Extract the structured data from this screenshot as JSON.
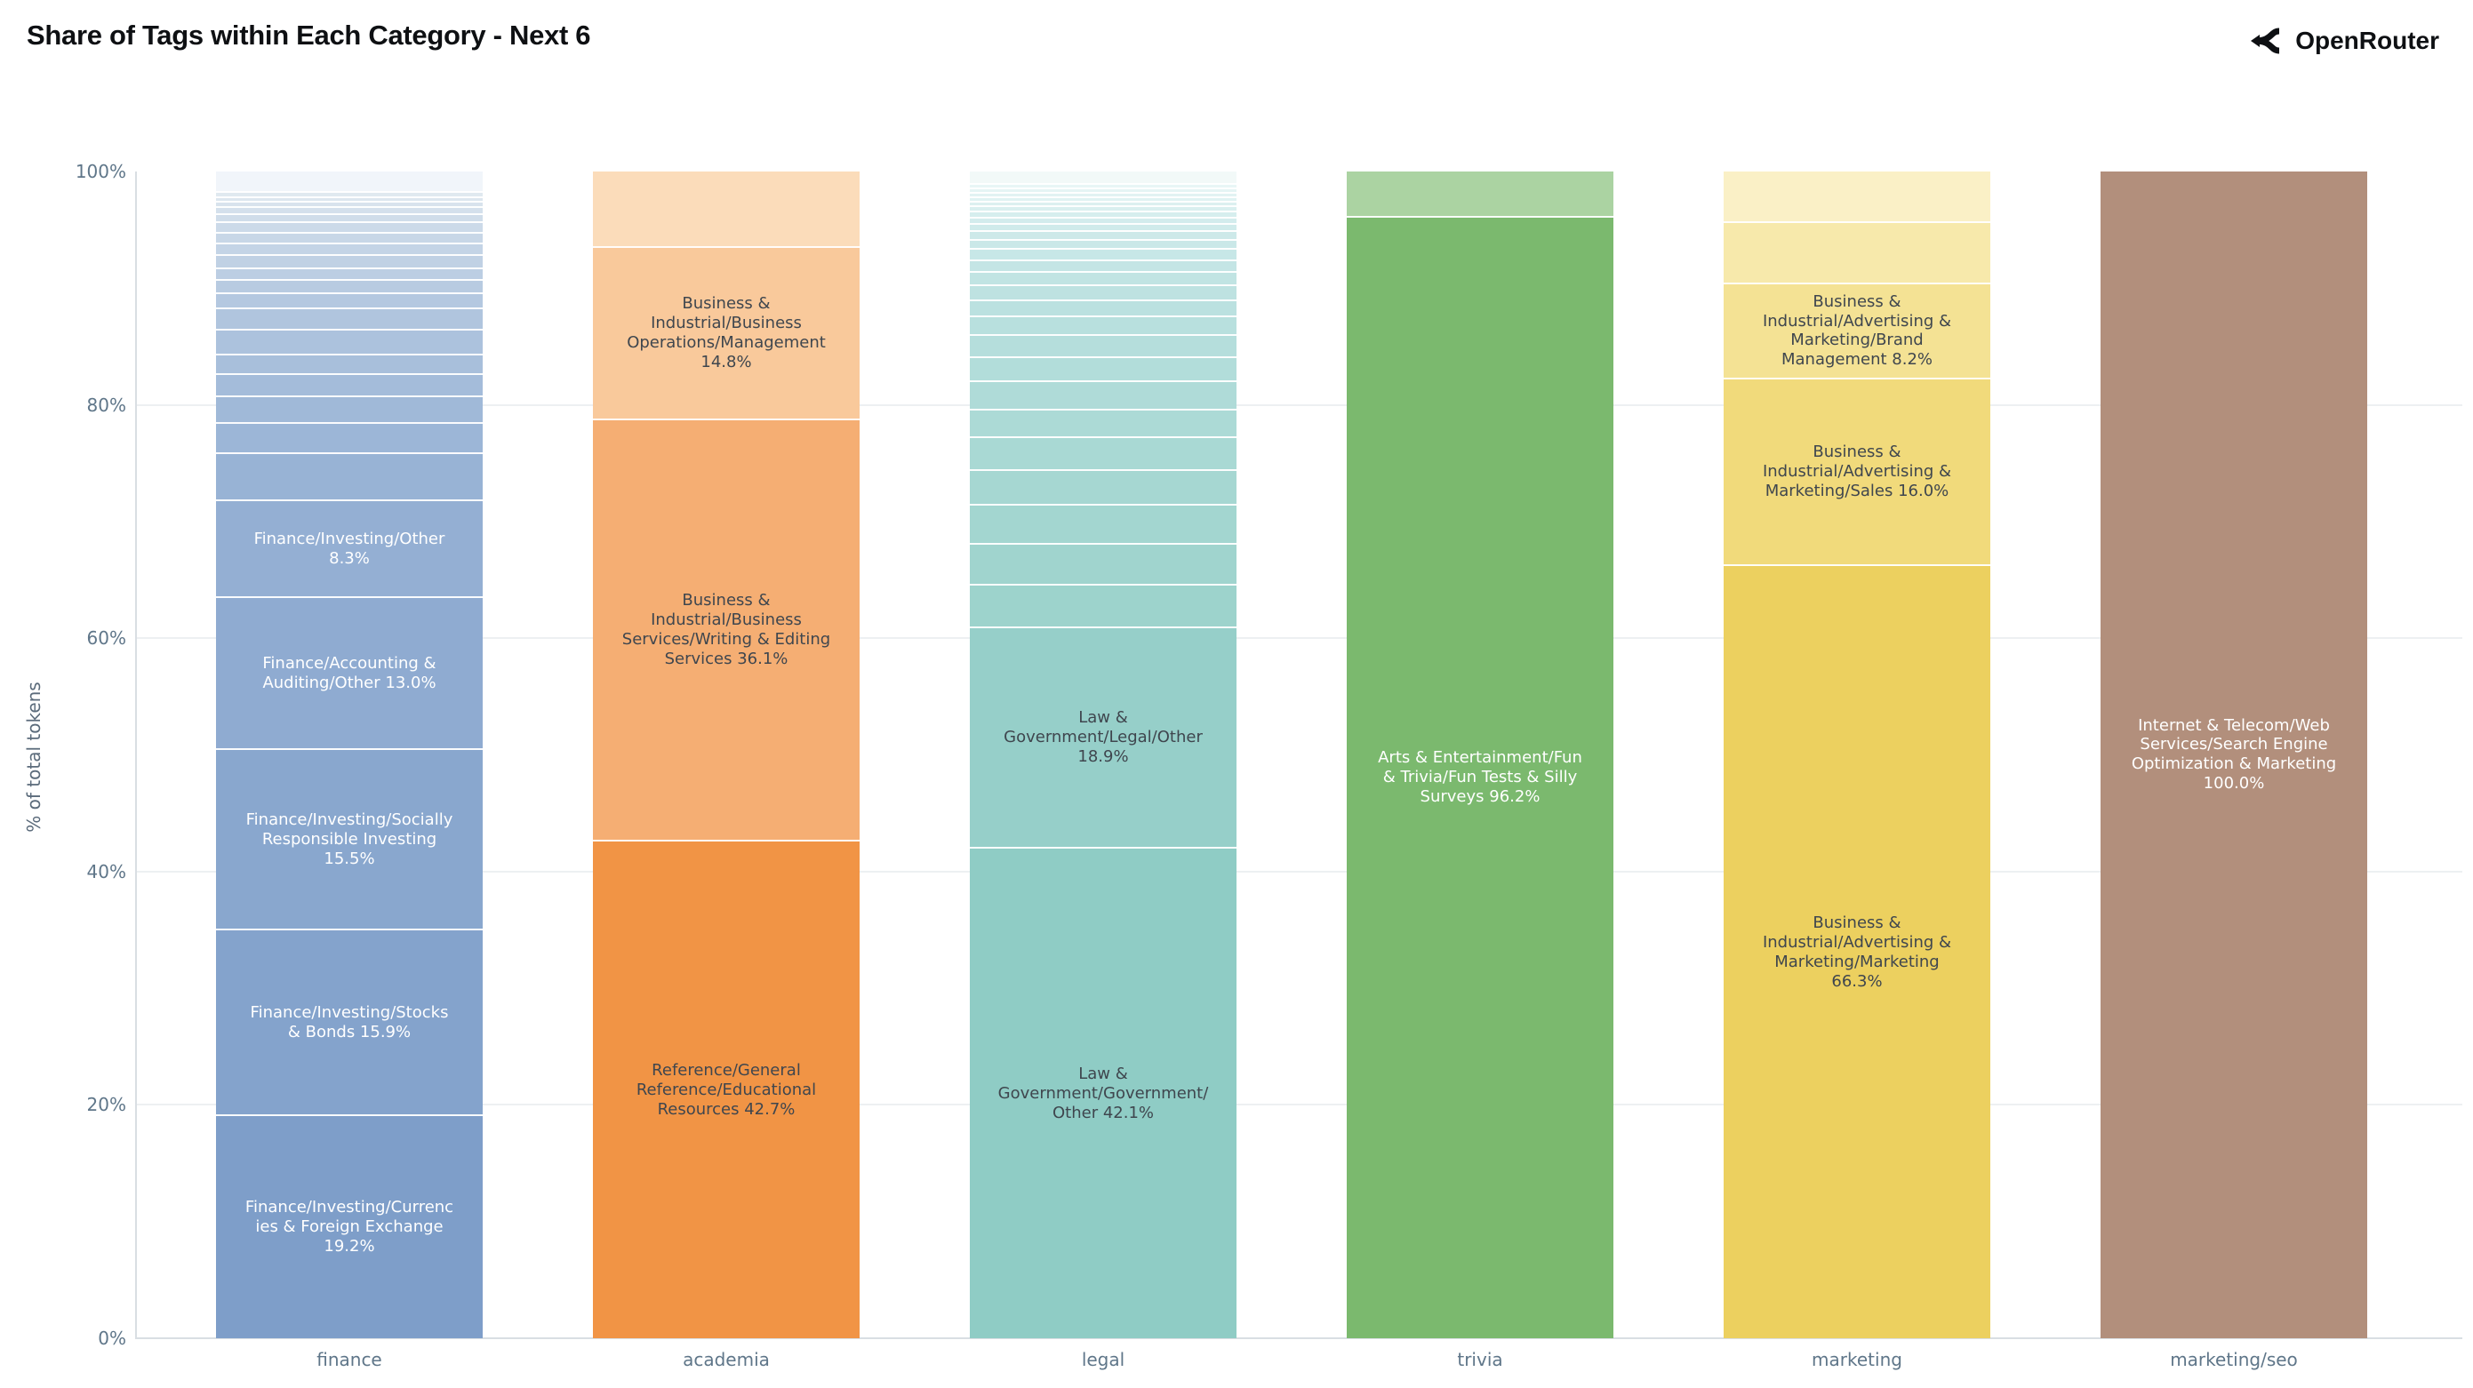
{
  "header": {
    "title": "Share of Tags within Each Category - Next 6",
    "brand": "OpenRouter",
    "icon": "openrouter-chevron-mark"
  },
  "chart_data": {
    "type": "bar",
    "stacked": true,
    "title": "Share of Tags within Each Category - Next 6",
    "xlabel": "",
    "ylabel": "% of total tokens",
    "ylim": [
      0,
      100
    ],
    "grid": true,
    "gridlines": [
      20,
      40,
      60,
      80
    ],
    "legend": "none",
    "yticks": [
      {
        "label": "0%",
        "value": 0
      },
      {
        "label": "20%",
        "value": 20
      },
      {
        "label": "40%",
        "value": 40
      },
      {
        "label": "60%",
        "value": 60
      },
      {
        "label": "80%",
        "value": 80
      },
      {
        "label": "100%",
        "value": 100
      }
    ],
    "categories": [
      "finance",
      "academia",
      "legal",
      "trivia",
      "marketing",
      "marketing/seo"
    ],
    "bars": [
      {
        "category": "finance",
        "segments": [
          {
            "value": 19.2,
            "label": "Finance/Investing/Currencies & Foreign Exchange 19.2%",
            "color": "#7e9ec9",
            "text_color": "#ffffff"
          },
          {
            "value": 15.9,
            "label": "Finance/Investing/Stocks & Bonds 15.9%",
            "color": "#84a3cc",
            "text_color": "#ffffff"
          },
          {
            "value": 15.5,
            "label": "Finance/Investing/Socially Responsible Investing 15.5%",
            "color": "#89a7ce",
            "text_color": "#ffffff"
          },
          {
            "value": 13.0,
            "label": "Finance/Accounting & Auditing/Other 13.0%",
            "color": "#8fabd1",
            "text_color": "#ffffff"
          },
          {
            "value": 8.3,
            "label": "Finance/Investing/Other 8.3%",
            "color": "#94afd3",
            "text_color": "#ffffff"
          },
          {
            "value": 4.1,
            "color": "#98b3d5"
          },
          {
            "value": 2.55,
            "color": "#9cb6d7"
          },
          {
            "value": 2.3,
            "color": "#a0b9d8"
          },
          {
            "value": 1.9,
            "color": "#a4bcda"
          },
          {
            "value": 1.7,
            "color": "#a8bfdb"
          },
          {
            "value": 2.1,
            "color": "#acc2dd"
          },
          {
            "value": 1.85,
            "color": "#b0c5de"
          },
          {
            "value": 1.3,
            "color": "#b4c8e0"
          },
          {
            "value": 1.15,
            "color": "#b8cbe1"
          },
          {
            "value": 1.0,
            "color": "#bccee3"
          },
          {
            "value": 1.1,
            "color": "#c0d1e4"
          },
          {
            "value": 1.0,
            "color": "#c4d4e6"
          },
          {
            "value": 0.95,
            "color": "#c8d7e7"
          },
          {
            "value": 0.9,
            "color": "#ccdae9"
          },
          {
            "value": 0.65,
            "color": "#d0ddea"
          },
          {
            "value": 0.6,
            "color": "#d4e0ec"
          },
          {
            "value": 0.45,
            "color": "#d8e3ed"
          },
          {
            "value": 0.45,
            "color": "#dce6ef"
          },
          {
            "value": 0.45,
            "color": "#e0e9f0"
          },
          {
            "value": 1.65,
            "color": "#f1f5fa"
          }
        ]
      },
      {
        "category": "academia",
        "segments": [
          {
            "value": 42.7,
            "label": "Reference/General Reference/Educational Resources 42.7%",
            "color": "#f19445",
            "text_color": "#3f464e"
          },
          {
            "value": 36.1,
            "label": "Business & Industrial/Business Services/Writing & Editing Services 36.1%",
            "color": "#f5ae73",
            "text_color": "#3f464e"
          },
          {
            "value": 14.8,
            "label": "Business & Industrial/Business Operations/Management 14.8%",
            "color": "#f9c99b",
            "text_color": "#3f464e"
          },
          {
            "value": 6.4,
            "color": "#fbdcba"
          }
        ]
      },
      {
        "category": "legal",
        "segments": [
          {
            "value": 42.1,
            "label": "Law & Government/Government/Other 42.1%",
            "color": "#8fccc5",
            "text_color": "#3f464e"
          },
          {
            "value": 18.9,
            "label": "Law & Government/Legal/Other 18.9%",
            "color": "#96cfc9",
            "text_color": "#3f464e"
          },
          {
            "value": 3.7,
            "color": "#9dd3cc"
          },
          {
            "value": 3.5,
            "color": "#a0d4ce"
          },
          {
            "value": 3.3,
            "color": "#a3d6d0"
          },
          {
            "value": 3.0,
            "color": "#a6d7d2"
          },
          {
            "value": 2.8,
            "color": "#a9d9d4"
          },
          {
            "value": 2.4,
            "color": "#acdad6"
          },
          {
            "value": 2.4,
            "color": "#afdbd8"
          },
          {
            "value": 2.1,
            "color": "#b2ddda"
          },
          {
            "value": 1.9,
            "color": "#b5dedc"
          },
          {
            "value": 1.6,
            "color": "#b8e0de"
          },
          {
            "value": 1.35,
            "color": "#bbe1e0"
          },
          {
            "value": 1.3,
            "color": "#bee2e1"
          },
          {
            "value": 1.1,
            "color": "#c1e4e3"
          },
          {
            "value": 1.05,
            "color": "#c4e5e5"
          },
          {
            "value": 0.95,
            "color": "#c7e7e7"
          },
          {
            "value": 0.8,
            "color": "#cae8e8"
          },
          {
            "value": 0.72,
            "color": "#cde9e9"
          },
          {
            "value": 0.62,
            "color": "#d0ebeb"
          },
          {
            "value": 0.52,
            "color": "#d3eced"
          },
          {
            "value": 0.52,
            "color": "#d6eeee"
          },
          {
            "value": 0.47,
            "color": "#d9efef"
          },
          {
            "value": 0.42,
            "color": "#dcf0f0"
          },
          {
            "value": 0.38,
            "color": "#dff2f2"
          },
          {
            "value": 0.35,
            "color": "#e2f3f3"
          },
          {
            "value": 0.4,
            "color": "#e5f4f4"
          },
          {
            "value": 0.4,
            "color": "#e8f6f6"
          },
          {
            "value": 0.95,
            "color": "#f2f9f8"
          }
        ]
      },
      {
        "category": "trivia",
        "segments": [
          {
            "value": 96.2,
            "label": "Arts & Entertainment/Fun & Trivia/Fun Tests & Silly Surveys 96.2%",
            "color": "#7bb96e",
            "text_color": "#ffffff"
          },
          {
            "value": 3.8,
            "color": "#abd3a2"
          }
        ]
      },
      {
        "category": "marketing",
        "segments": [
          {
            "value": 66.3,
            "label": "Business & Industrial/Advertising & Marketing/Marketing 66.3%",
            "color": "#ecd05f",
            "text_color": "#3f464e"
          },
          {
            "value": 16.0,
            "label": "Business & Industrial/Advertising & Marketing/Sales 16.0%",
            "color": "#f1da7b",
            "text_color": "#3f464e"
          },
          {
            "value": 8.2,
            "label": "Business & Industrial/Advertising & Marketing/Brand Management 8.2%",
            "color": "#f4e294",
            "text_color": "#3f464e"
          },
          {
            "value": 5.2,
            "color": "#f7e9ab"
          },
          {
            "value": 4.3,
            "color": "#faf0c6"
          }
        ]
      },
      {
        "category": "marketing/seo",
        "segments": [
          {
            "value": 100.0,
            "label": "Internet & Telecom/Web Services/Search Engine Optimization & Marketing 100.0%",
            "color": "#b28f7c",
            "text_color": "#ffffff"
          }
        ]
      }
    ]
  }
}
